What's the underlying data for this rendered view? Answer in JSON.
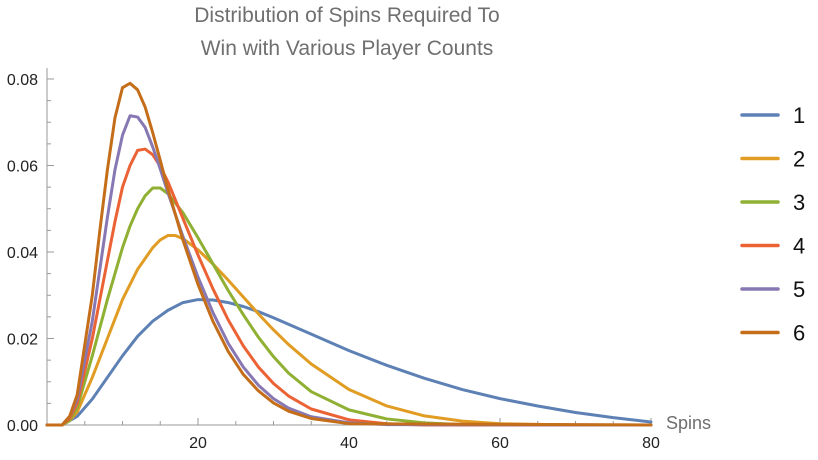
{
  "chart_data": {
    "type": "line",
    "title_lines": [
      "Distribution of Spins Required To",
      "Win with Various Player Counts"
    ],
    "xlabel": "Spins",
    "ylabel": "",
    "xlim": [
      0,
      80
    ],
    "ylim": [
      0,
      0.08
    ],
    "x_ticks": [
      {
        "value": 20,
        "label": "20"
      },
      {
        "value": 40,
        "label": "40"
      },
      {
        "value": 60,
        "label": "60"
      },
      {
        "value": 80,
        "label": "80"
      }
    ],
    "y_ticks": [
      {
        "value": 0.0,
        "label": "0.00"
      },
      {
        "value": 0.02,
        "label": "0.02"
      },
      {
        "value": 0.04,
        "label": "0.04"
      },
      {
        "value": 0.06,
        "label": "0.06"
      },
      {
        "value": 0.08,
        "label": "0.08"
      }
    ],
    "legend_position": "right",
    "series": [
      {
        "name": "1",
        "color": "#5e81b5",
        "x": [
          0,
          2,
          4,
          6,
          8,
          10,
          12,
          14,
          16,
          18,
          20,
          22,
          24,
          26,
          28,
          30,
          35,
          40,
          45,
          50,
          55,
          60,
          65,
          70,
          75,
          80
        ],
        "values": [
          0,
          0,
          0.002,
          0.006,
          0.011,
          0.016,
          0.0205,
          0.024,
          0.0265,
          0.0283,
          0.029,
          0.0289,
          0.0283,
          0.0274,
          0.0262,
          0.0248,
          0.021,
          0.0172,
          0.0138,
          0.0108,
          0.0082,
          0.0061,
          0.0044,
          0.0029,
          0.0017,
          0.0007
        ]
      },
      {
        "name": "2",
        "color": "#e19c24",
        "x": [
          0,
          2,
          3,
          4,
          6,
          8,
          10,
          12,
          14,
          15,
          16,
          17,
          18,
          20,
          22,
          24,
          26,
          28,
          30,
          32,
          35,
          40,
          45,
          50,
          55,
          60,
          70,
          80
        ],
        "values": [
          0,
          0,
          0.001,
          0.003,
          0.011,
          0.02,
          0.029,
          0.036,
          0.041,
          0.0428,
          0.0438,
          0.0438,
          0.0431,
          0.0405,
          0.0372,
          0.0335,
          0.0296,
          0.0257,
          0.022,
          0.0186,
          0.0141,
          0.0082,
          0.0044,
          0.0021,
          0.0009,
          0.0003,
          0,
          0
        ]
      },
      {
        "name": "3",
        "color": "#8fb032",
        "x": [
          0,
          2,
          3,
          4,
          6,
          8,
          10,
          11,
          12,
          13,
          14,
          15,
          16,
          18,
          20,
          22,
          24,
          26,
          28,
          30,
          32,
          35,
          40,
          45,
          50,
          55,
          60,
          80
        ],
        "values": [
          0,
          0,
          0.001,
          0.004,
          0.016,
          0.029,
          0.041,
          0.046,
          0.05,
          0.053,
          0.0548,
          0.0548,
          0.0535,
          0.0491,
          0.0433,
          0.0372,
          0.0311,
          0.0255,
          0.0203,
          0.0158,
          0.012,
          0.0077,
          0.0035,
          0.0014,
          0.0005,
          0.0001,
          0,
          0
        ]
      },
      {
        "name": "4",
        "color": "#eb6235",
        "x": [
          0,
          2,
          3,
          4,
          6,
          8,
          9,
          10,
          11,
          12,
          13,
          14,
          15,
          16,
          18,
          20,
          22,
          24,
          26,
          28,
          30,
          32,
          35,
          40,
          45,
          50,
          80
        ],
        "values": [
          0,
          0,
          0.0015,
          0.005,
          0.02,
          0.038,
          0.047,
          0.055,
          0.06,
          0.0635,
          0.0638,
          0.0625,
          0.0598,
          0.0563,
          0.0478,
          0.0393,
          0.0314,
          0.0243,
          0.0183,
          0.0134,
          0.0096,
          0.0067,
          0.0037,
          0.0012,
          0.0003,
          0,
          0
        ]
      },
      {
        "name": "5",
        "color": "#8778b3",
        "x": [
          0,
          2,
          3,
          4,
          6,
          7,
          8,
          9,
          10,
          11,
          12,
          13,
          14,
          15,
          16,
          18,
          20,
          22,
          24,
          26,
          28,
          30,
          32,
          35,
          40,
          45,
          80
        ],
        "values": [
          0,
          0,
          0.002,
          0.006,
          0.024,
          0.036,
          0.048,
          0.059,
          0.067,
          0.0715,
          0.0712,
          0.0688,
          0.0643,
          0.0592,
          0.0538,
          0.0436,
          0.0342,
          0.0259,
          0.0189,
          0.0134,
          0.0092,
          0.0061,
          0.0039,
          0.0019,
          0.0005,
          0.0001,
          0
        ]
      },
      {
        "name": "6",
        "color": "#c56e1a",
        "x": [
          0,
          2,
          3,
          4,
          6,
          7,
          8,
          9,
          10,
          11,
          12,
          13,
          14,
          15,
          16,
          18,
          20,
          22,
          24,
          26,
          28,
          30,
          32,
          35,
          40,
          80
        ],
        "values": [
          0,
          0,
          0.002,
          0.007,
          0.03,
          0.045,
          0.059,
          0.071,
          0.078,
          0.079,
          0.0775,
          0.0735,
          0.0676,
          0.0612,
          0.0546,
          0.0428,
          0.0325,
          0.0239,
          0.017,
          0.0117,
          0.0079,
          0.0051,
          0.0032,
          0.0015,
          0.0003,
          0
        ]
      }
    ]
  }
}
